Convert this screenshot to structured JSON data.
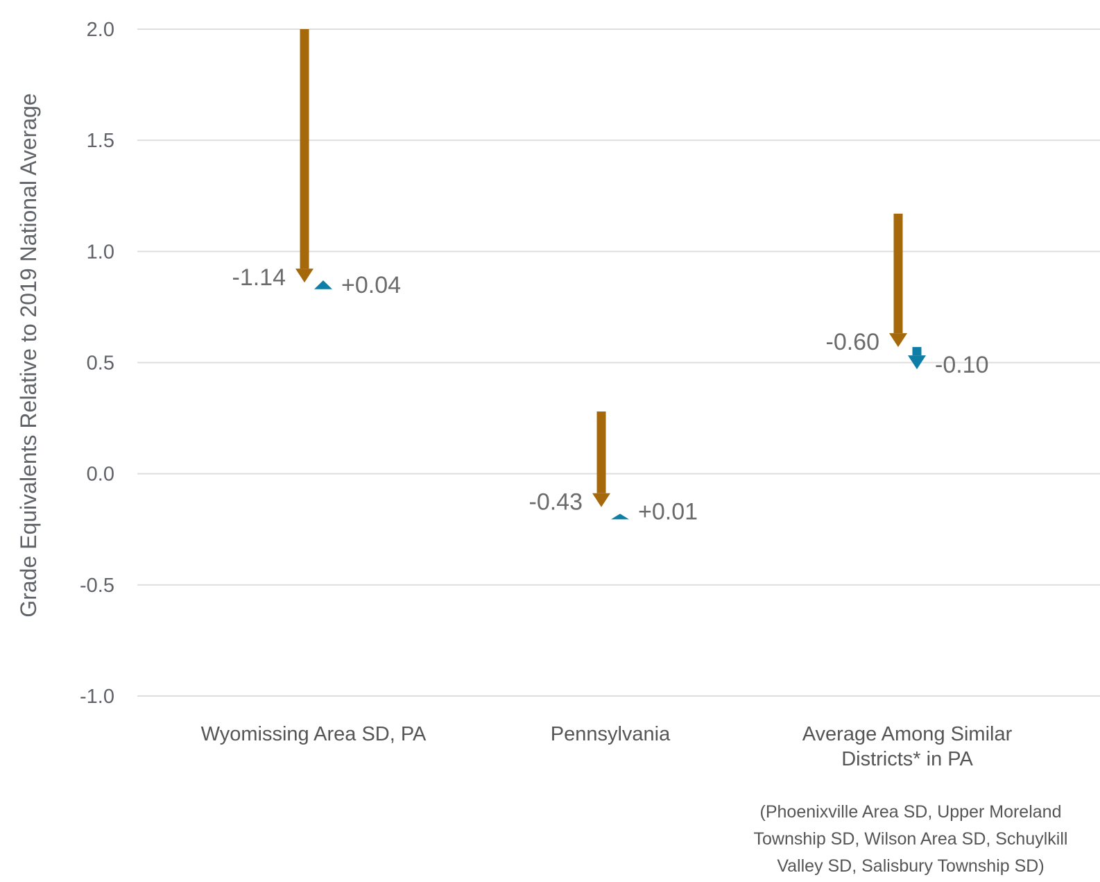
{
  "chart_data": {
    "type": "arrow",
    "ylabel": "Grade Equivalents Relative to 2019 National Average",
    "ylim": [
      -1.0,
      2.0
    ],
    "yticks": [
      2.0,
      1.5,
      1.0,
      0.5,
      0.0,
      -0.5,
      -1.0
    ],
    "ytick_labels": [
      "2.0",
      "1.5",
      "1.0",
      "0.5",
      "0.0",
      "-0.5",
      "-1.0"
    ],
    "grid": true,
    "categories": [
      {
        "label_lines": [
          "Wyomissing Area SD, PA"
        ]
      },
      {
        "label_lines": [
          "Pennsylvania"
        ]
      },
      {
        "label_lines": [
          "Average Among Similar",
          "Districts* in PA"
        ]
      }
    ],
    "footnote_lines": [
      "(Phoenixville Area SD, Upper Moreland",
      "Township SD, Wilson Area SD, Schuylkill",
      "Valley SD, Salisbury Township SD)"
    ],
    "series": [
      {
        "color": "#a5680a",
        "points": [
          {
            "start": 2.0,
            "end": 0.86,
            "label": "-1.14"
          },
          {
            "start": 0.28,
            "end": -0.15,
            "label": "-0.43"
          },
          {
            "start": 1.17,
            "end": 0.57,
            "label": "-0.60"
          }
        ]
      },
      {
        "color": "#0e7ea6",
        "points": [
          {
            "start": 0.83,
            "end": 0.87,
            "label": "+0.04"
          },
          {
            "start": -0.19,
            "end": -0.18,
            "label": "+0.01"
          },
          {
            "start": 0.57,
            "end": 0.47,
            "label": "-0.10"
          }
        ]
      }
    ]
  }
}
